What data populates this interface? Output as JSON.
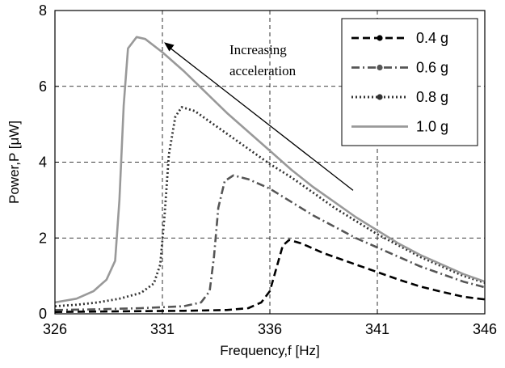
{
  "chart_data": {
    "type": "line",
    "title": "",
    "xlabel": "Frequency,f [Hz]",
    "ylabel": "Power,P [μW]",
    "xlim": [
      326,
      346
    ],
    "ylim": [
      0,
      8
    ],
    "xticks": [
      326,
      331,
      336,
      341,
      346
    ],
    "yticks": [
      0,
      2,
      4,
      6,
      8
    ],
    "grid": true,
    "legend_position": "top-right",
    "annotation": {
      "lines": [
        "Increasing",
        "acceleration"
      ],
      "arrow_from": [
        341,
        3.0
      ],
      "arrow_to": [
        329.8,
        7.1
      ]
    },
    "series": [
      {
        "name": "0.4 g",
        "color": "#000000",
        "style": "dashed",
        "points": [
          [
            326,
            0.05
          ],
          [
            328,
            0.06
          ],
          [
            330,
            0.07
          ],
          [
            332,
            0.08
          ],
          [
            334,
            0.1
          ],
          [
            335,
            0.15
          ],
          [
            335.6,
            0.3
          ],
          [
            336.0,
            0.6
          ],
          [
            336.3,
            1.2
          ],
          [
            336.6,
            1.8
          ],
          [
            336.9,
            1.95
          ],
          [
            337.5,
            1.85
          ],
          [
            338.5,
            1.6
          ],
          [
            340,
            1.3
          ],
          [
            341,
            1.1
          ],
          [
            342,
            0.9
          ],
          [
            343,
            0.72
          ],
          [
            344,
            0.58
          ],
          [
            345,
            0.45
          ],
          [
            346,
            0.38
          ]
        ]
      },
      {
        "name": "0.6 g",
        "color": "#555555",
        "style": "dashdot",
        "points": [
          [
            326,
            0.1
          ],
          [
            328,
            0.12
          ],
          [
            330,
            0.15
          ],
          [
            332,
            0.2
          ],
          [
            332.8,
            0.3
          ],
          [
            333.2,
            0.6
          ],
          [
            333.4,
            1.5
          ],
          [
            333.6,
            2.8
          ],
          [
            333.9,
            3.5
          ],
          [
            334.3,
            3.65
          ],
          [
            335,
            3.55
          ],
          [
            336,
            3.3
          ],
          [
            337,
            2.95
          ],
          [
            338,
            2.6
          ],
          [
            339,
            2.3
          ],
          [
            340,
            2.0
          ],
          [
            341,
            1.75
          ],
          [
            342,
            1.5
          ],
          [
            343,
            1.25
          ],
          [
            344,
            1.05
          ],
          [
            345,
            0.85
          ],
          [
            346,
            0.7
          ]
        ]
      },
      {
        "name": "0.8 g",
        "color": "#333333",
        "style": "dotted",
        "points": [
          [
            326,
            0.2
          ],
          [
            327,
            0.24
          ],
          [
            328,
            0.3
          ],
          [
            329,
            0.4
          ],
          [
            330,
            0.55
          ],
          [
            330.6,
            0.8
          ],
          [
            330.9,
            1.3
          ],
          [
            331.1,
            2.6
          ],
          [
            331.3,
            4.2
          ],
          [
            331.6,
            5.2
          ],
          [
            331.9,
            5.45
          ],
          [
            332.5,
            5.35
          ],
          [
            333,
            5.15
          ],
          [
            334,
            4.75
          ],
          [
            335,
            4.35
          ],
          [
            336,
            3.95
          ],
          [
            337,
            3.6
          ],
          [
            338,
            3.2
          ],
          [
            339,
            2.8
          ],
          [
            340,
            2.45
          ],
          [
            341,
            2.1
          ],
          [
            342,
            1.8
          ],
          [
            343,
            1.5
          ],
          [
            344,
            1.25
          ],
          [
            345,
            1.0
          ],
          [
            346,
            0.82
          ]
        ]
      },
      {
        "name": "1.0 g",
        "color": "#999999",
        "style": "solid",
        "points": [
          [
            326,
            0.3
          ],
          [
            327,
            0.4
          ],
          [
            327.8,
            0.6
          ],
          [
            328.4,
            0.9
          ],
          [
            328.8,
            1.4
          ],
          [
            329.0,
            3.0
          ],
          [
            329.2,
            5.5
          ],
          [
            329.4,
            7.0
          ],
          [
            329.8,
            7.3
          ],
          [
            330.2,
            7.25
          ],
          [
            331,
            6.9
          ],
          [
            332,
            6.4
          ],
          [
            333,
            5.85
          ],
          [
            334,
            5.3
          ],
          [
            335,
            4.8
          ],
          [
            336,
            4.3
          ],
          [
            337,
            3.8
          ],
          [
            338,
            3.35
          ],
          [
            339,
            2.95
          ],
          [
            340,
            2.55
          ],
          [
            341,
            2.2
          ],
          [
            342,
            1.85
          ],
          [
            343,
            1.55
          ],
          [
            344,
            1.3
          ],
          [
            345,
            1.05
          ],
          [
            346,
            0.85
          ]
        ]
      }
    ]
  }
}
